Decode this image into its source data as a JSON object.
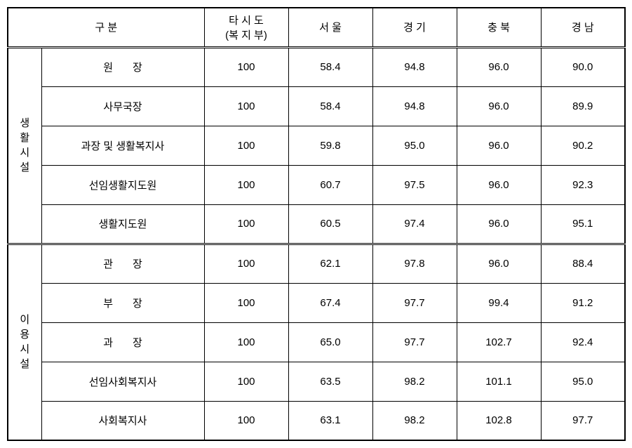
{
  "headers": {
    "category": "구  분",
    "col1_line1": "타 시 도",
    "col1_line2": "(복 지 부)",
    "col2": "서  울",
    "col3": "경  기",
    "col4": "충 북",
    "col5": "경  남"
  },
  "sections": [
    {
      "label": "생활시설",
      "rows": [
        {
          "role": "원장",
          "values": [
            "100",
            "58.4",
            "94.8",
            "96.0",
            "90.0"
          ],
          "roleClass": "spaced-wide"
        },
        {
          "role": "사무국장",
          "values": [
            "100",
            "58.4",
            "94.8",
            "96.0",
            "89.9"
          ],
          "roleClass": ""
        },
        {
          "role": "과장 및 생활복지사",
          "values": [
            "100",
            "59.8",
            "95.0",
            "96.0",
            "90.2"
          ],
          "roleClass": ""
        },
        {
          "role": "선임생활지도원",
          "values": [
            "100",
            "60.7",
            "97.5",
            "96.0",
            "92.3"
          ],
          "roleClass": ""
        },
        {
          "role": "생활지도원",
          "values": [
            "100",
            "60.5",
            "97.4",
            "96.0",
            "95.1"
          ],
          "roleClass": ""
        }
      ]
    },
    {
      "label": "이용시설",
      "rows": [
        {
          "role": "관장",
          "values": [
            "100",
            "62.1",
            "97.8",
            "96.0",
            "88.4"
          ],
          "roleClass": "spaced-wide"
        },
        {
          "role": "부장",
          "values": [
            "100",
            "67.4",
            "97.7",
            "99.4",
            "91.2"
          ],
          "roleClass": "spaced-wide"
        },
        {
          "role": "과장",
          "values": [
            "100",
            "65.0",
            "97.7",
            "102.7",
            "92.4"
          ],
          "roleClass": "spaced-wide"
        },
        {
          "role": "선임사회복지사",
          "values": [
            "100",
            "63.5",
            "98.2",
            "101.1",
            "95.0"
          ],
          "roleClass": ""
        },
        {
          "role": "사회복지사",
          "values": [
            "100",
            "63.1",
            "98.2",
            "102.8",
            "97.7"
          ],
          "roleClass": ""
        }
      ]
    }
  ],
  "colors": {
    "background": "#ffffff",
    "border": "#000000",
    "text": "#000000"
  },
  "typography": {
    "font_family": "Malgun Gothic",
    "cell_fontsize": 15
  }
}
